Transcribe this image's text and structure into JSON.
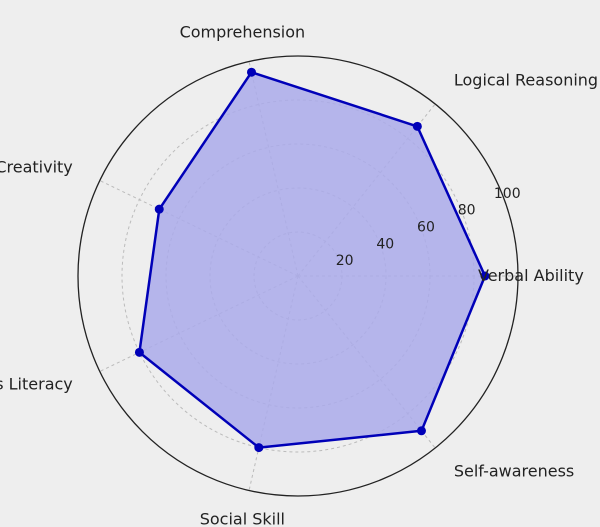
{
  "chart_data": {
    "type": "radar",
    "title": "",
    "categories": [
      "Verbal Ability",
      "Logical Reasoning",
      "Comprehension",
      "Creativity",
      "Business Literacy",
      "Social Skill",
      "Self-awareness"
    ],
    "series": [
      {
        "values": [
          85,
          87,
          95,
          70,
          80,
          80,
          90
        ]
      }
    ],
    "rlim": [
      0,
      100
    ],
    "rticks": [
      20,
      40,
      60,
      80,
      100
    ],
    "grid": true,
    "legend": "none",
    "colors": {
      "line": "#0000b8",
      "fill": "#aaaaea",
      "marker": "#0000b8",
      "grid": "#bbbbbb",
      "outer": "#222222",
      "background": "#eeeeee"
    }
  }
}
